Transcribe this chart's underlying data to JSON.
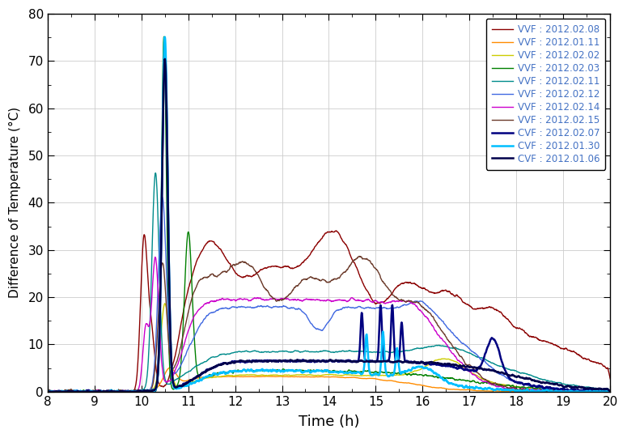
{
  "xlabel": "Time (h)",
  "ylabel": "Difference of Temperature (°C)",
  "xlim": [
    8,
    20
  ],
  "ylim": [
    0,
    80
  ],
  "xticks": [
    8,
    9,
    10,
    11,
    12,
    13,
    14,
    15,
    16,
    17,
    18,
    19,
    20
  ],
  "yticks": [
    0,
    10,
    20,
    30,
    40,
    50,
    60,
    70,
    80
  ],
  "series": [
    {
      "label": "VVF : 2012.02.08",
      "color": "#8B0000",
      "lw": 1.0
    },
    {
      "label": "VVF : 2012.01.11",
      "color": "#FF8C00",
      "lw": 1.0
    },
    {
      "label": "VVF : 2012.02.02",
      "color": "#CCCC00",
      "lw": 1.0
    },
    {
      "label": "VVF : 2012.02.03",
      "color": "#008000",
      "lw": 1.0
    },
    {
      "label": "VVF : 2012.02.11",
      "color": "#008B8B",
      "lw": 1.0
    },
    {
      "label": "VVF : 2012.02.12",
      "color": "#4169E1",
      "lw": 1.0
    },
    {
      "label": "VVF : 2012.02.14",
      "color": "#CC00CC",
      "lw": 1.0
    },
    {
      "label": "VVF : 2012.02.15",
      "color": "#6B3A2A",
      "lw": 1.0
    },
    {
      "label": "CVF : 2012.02.07",
      "color": "#000080",
      "lw": 1.8
    },
    {
      "label": "CVF : 2012.01.30",
      "color": "#00BFFF",
      "lw": 1.8
    },
    {
      "label": "CVF : 2012.01.06",
      "color": "#00004B",
      "lw": 1.8
    }
  ],
  "legend_text_color": "#4472C4",
  "background_color": "#FFFFFF"
}
